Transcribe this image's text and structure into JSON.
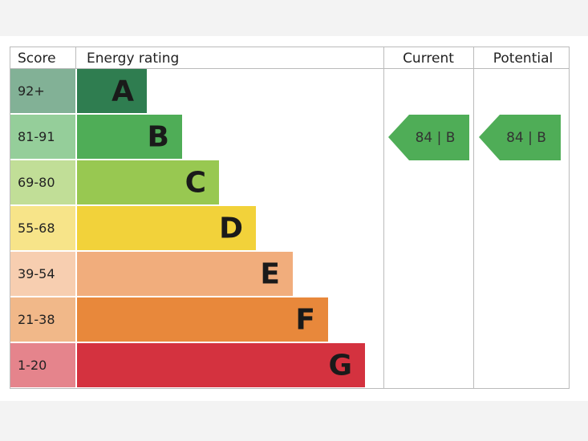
{
  "header": {
    "score": "Score",
    "energy_rating": "Energy rating",
    "current": "Current",
    "potential": "Potential"
  },
  "rows": [
    {
      "score": "92+",
      "letter": "A",
      "color": "#2f7d50"
    },
    {
      "score": "81-91",
      "letter": "B",
      "color": "#4fad57"
    },
    {
      "score": "69-80",
      "letter": "C",
      "color": "#98c851"
    },
    {
      "score": "55-68",
      "letter": "D",
      "color": "#f2d23a"
    },
    {
      "score": "39-54",
      "letter": "E",
      "color": "#f1ad7c"
    },
    {
      "score": "21-38",
      "letter": "F",
      "color": "#e8883b"
    },
    {
      "score": "1-20",
      "letter": "G",
      "color": "#d4323f"
    }
  ],
  "current": {
    "label": "84 | B",
    "color": "#4fad57"
  },
  "potential": {
    "label": "84 | B",
    "color": "#4fad57"
  }
}
